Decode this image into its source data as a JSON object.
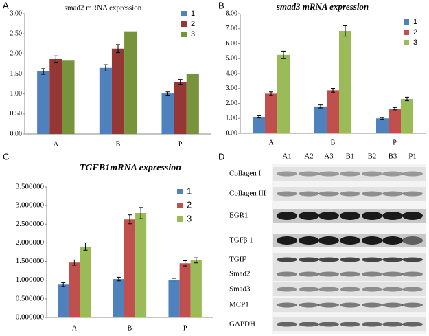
{
  "panels": [
    "A",
    "B",
    "C",
    "D"
  ],
  "chart_data": [
    {
      "type": "bar",
      "title": "smad2 mRNA expression",
      "categories": [
        "A",
        "B",
        "P"
      ],
      "series": [
        {
          "name": "1",
          "color": "#4f81bd",
          "values": [
            1.56,
            1.65,
            1.01
          ],
          "errors": [
            0.07,
            0.08,
            0.04
          ]
        },
        {
          "name": "2",
          "color": "#953735",
          "values": [
            1.87,
            2.13,
            1.3
          ],
          "errors": [
            0.08,
            0.1,
            0.06
          ]
        },
        {
          "name": "3",
          "color": "#77933c",
          "values": [
            1.83,
            2.56,
            1.5
          ],
          "errors": [
            null,
            null,
            null
          ]
        }
      ],
      "ylim": [
        0,
        3
      ],
      "yticks": [
        {
          "value": 0,
          "label": "0.00"
        },
        {
          "value": 0.5,
          "label": "0.50"
        },
        {
          "value": 1,
          "label": "1.00"
        },
        {
          "value": 1.5,
          "label": "1.50"
        },
        {
          "value": 2,
          "label": "2.00"
        },
        {
          "value": 2.5,
          "label": "2.50"
        },
        {
          "value": 3,
          "label": "3.00"
        }
      ],
      "legend": "upper right"
    },
    {
      "type": "bar",
      "title": "smad3 mRNA expression",
      "categories": [
        "A",
        "B",
        "P"
      ],
      "series": [
        {
          "name": "1",
          "color": "#4f81bd",
          "values": [
            1.1,
            1.8,
            1.0
          ],
          "errors": [
            0.07,
            0.1,
            0.05
          ]
        },
        {
          "name": "2",
          "color": "#c0504d",
          "values": [
            2.65,
            2.88,
            1.65
          ],
          "errors": [
            0.12,
            0.13,
            0.08
          ]
        },
        {
          "name": "3",
          "color": "#9bbb59",
          "values": [
            5.25,
            6.85,
            2.3
          ],
          "errors": [
            0.25,
            0.35,
            0.12
          ]
        }
      ],
      "ylim": [
        0,
        8
      ],
      "yticks": [
        {
          "value": 0,
          "label": "0.00"
        },
        {
          "value": 1,
          "label": "1.00"
        },
        {
          "value": 2,
          "label": "2.00"
        },
        {
          "value": 3,
          "label": "3.00"
        },
        {
          "value": 4,
          "label": "4.00"
        },
        {
          "value": 5,
          "label": "5.00"
        },
        {
          "value": 6,
          "label": "6.00"
        },
        {
          "value": 7,
          "label": "7.00"
        },
        {
          "value": 8,
          "label": "8.00"
        }
      ],
      "legend": "upper right"
    },
    {
      "type": "bar",
      "title": "TGFB1mRNA expression",
      "categories": [
        "A",
        "B",
        "P"
      ],
      "series": [
        {
          "name": "1",
          "color": "#4f81bd",
          "values": [
            0.88,
            1.03,
            1.0
          ],
          "errors": [
            0.05,
            0.05,
            0.05
          ]
        },
        {
          "name": "2",
          "color": "#c0504d",
          "values": [
            1.47,
            2.63,
            1.45
          ],
          "errors": [
            0.07,
            0.12,
            0.07
          ]
        },
        {
          "name": "3",
          "color": "#9bbb59",
          "values": [
            1.9,
            2.8,
            1.53
          ],
          "errors": [
            0.1,
            0.15,
            0.07
          ]
        }
      ],
      "ylim": [
        0,
        3.5
      ],
      "yticks": [
        {
          "value": 0,
          "label": "0.000000"
        },
        {
          "value": 0.5,
          "label": "0.500000"
        },
        {
          "value": 1,
          "label": "1.000000"
        },
        {
          "value": 1.5,
          "label": "1.500000"
        },
        {
          "value": 2,
          "label": "2.000000"
        },
        {
          "value": 2.5,
          "label": "2.500000"
        },
        {
          "value": 3,
          "label": "3.000000"
        },
        {
          "value": 3.5,
          "label": "3.500000"
        }
      ],
      "legend": "upper right"
    }
  ],
  "blot": {
    "lanes": [
      "A1",
      "A2",
      "A3",
      "B1",
      "B2",
      "B3",
      "P1"
    ],
    "proteins": [
      "Collagen I",
      "Collagen III",
      "EGR1",
      "TGFβ 1",
      "TGIF",
      "Smad2",
      "Smad3",
      "MCP1",
      "GAPDH"
    ]
  }
}
